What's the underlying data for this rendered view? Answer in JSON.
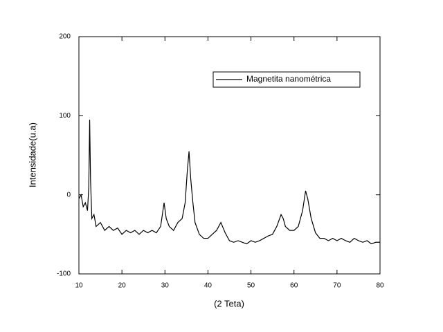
{
  "chart_data": {
    "type": "line",
    "x_label": "(2 Teta)",
    "y_label": "Intensidade(u.a)",
    "xlim": [
      10,
      80
    ],
    "ylim": [
      -100,
      200
    ],
    "xticks": [
      10,
      20,
      30,
      40,
      50,
      60,
      70,
      80
    ],
    "yticks": [
      -100,
      0,
      100,
      200
    ],
    "legend": "upper right",
    "x": [
      10,
      10.5,
      11,
      11.5,
      12,
      12.3,
      12.5,
      12.7,
      13,
      13.5,
      14,
      15,
      16,
      17,
      18,
      19,
      20,
      21,
      22,
      23,
      24,
      25,
      26,
      27,
      28,
      29,
      29.8,
      30.3,
      31,
      32,
      33,
      34,
      34.7,
      35.2,
      35.6,
      36,
      36.5,
      37,
      38,
      39,
      40,
      41,
      42,
      43,
      44,
      45,
      46,
      47,
      48,
      49,
      50,
      51,
      52,
      53,
      54,
      55,
      56,
      57,
      57.5,
      58,
      59,
      60,
      61,
      62,
      62.7,
      63.2,
      64,
      65,
      66,
      67,
      68,
      69,
      70,
      71,
      72,
      73,
      74,
      75,
      76,
      77,
      78,
      79,
      80
    ],
    "series": [
      {
        "name": "Magnetita nanométrica",
        "color": "#000000",
        "values": [
          -5,
          0,
          -15,
          -10,
          -20,
          10,
          95,
          20,
          -30,
          -25,
          -40,
          -35,
          -45,
          -40,
          -45,
          -42,
          -50,
          -45,
          -48,
          -45,
          -50,
          -45,
          -48,
          -45,
          -48,
          -40,
          -10,
          -30,
          -40,
          -45,
          -35,
          -30,
          -10,
          30,
          55,
          20,
          -10,
          -35,
          -50,
          -55,
          -55,
          -50,
          -45,
          -35,
          -48,
          -58,
          -60,
          -58,
          -60,
          -62,
          -58,
          -60,
          -58,
          -55,
          -52,
          -50,
          -40,
          -25,
          -30,
          -40,
          -45,
          -45,
          -40,
          -20,
          5,
          -5,
          -30,
          -48,
          -55,
          -55,
          -58,
          -55,
          -58,
          -55,
          -58,
          -60,
          -55,
          -58,
          -60,
          -58,
          -62,
          -60,
          -60
        ]
      }
    ]
  }
}
